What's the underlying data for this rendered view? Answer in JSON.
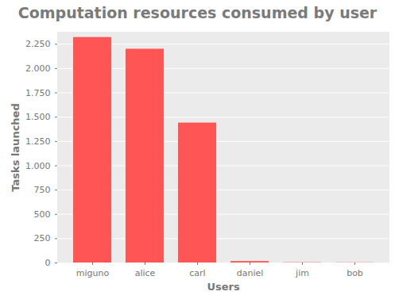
{
  "chart_data": {
    "type": "bar",
    "title": "Computation resources consumed by user",
    "x_label": "Users",
    "y_label": "Tasks launched",
    "categories": [
      "miguno",
      "alice",
      "carl",
      "daniel",
      "jim",
      "bob"
    ],
    "values": [
      2320,
      2200,
      1440,
      15,
      3,
      2
    ],
    "color": "#ff5555",
    "ylim": [
      0,
      2375
    ],
    "yticks": [
      0,
      250,
      500,
      750,
      {
        "value": 1000,
        "label": "1.000"
      },
      {
        "value": 1250,
        "label": "1.250"
      },
      {
        "value": 1500,
        "label": "1.500"
      },
      {
        "value": 1750,
        "label": "1.750"
      },
      {
        "value": 2000,
        "label": "2.000"
      },
      {
        "value": 2250,
        "label": "2.250"
      }
    ],
    "grid": true
  }
}
